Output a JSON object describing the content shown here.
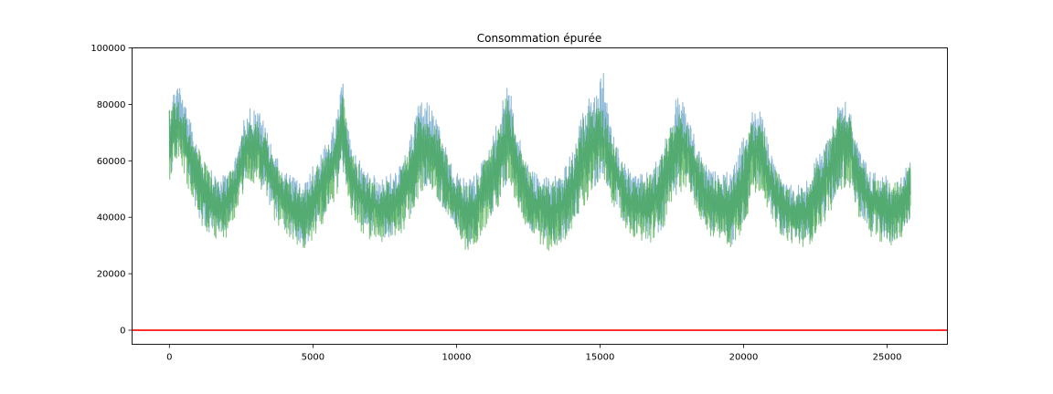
{
  "chart_data": {
    "type": "line",
    "title": "Consommation épurée",
    "xlabel": "",
    "ylabel": "",
    "xlim": [
      -1300,
      27100
    ],
    "ylim": [
      -5000,
      100000
    ],
    "x_ticks": [
      0,
      5000,
      10000,
      15000,
      20000,
      25000
    ],
    "x_tick_labels": [
      "0",
      "5000",
      "10000",
      "15000",
      "20000",
      "25000"
    ],
    "y_ticks": [
      0,
      20000,
      40000,
      60000,
      80000,
      100000
    ],
    "y_tick_labels": [
      "0",
      "20000",
      "40000",
      "60000",
      "80000",
      "100000"
    ],
    "grid": false,
    "legend": "none",
    "series": [
      {
        "color": "#1f77b4",
        "opacity": 0.5,
        "x": [
          0,
          300,
          700,
          1100,
          1500,
          1900,
          2300,
          2700,
          3100,
          3500,
          3900,
          4300,
          4700,
          5100,
          5500,
          5800,
          6050,
          6300,
          6700,
          7100,
          7500,
          7900,
          8300,
          8700,
          9100,
          9500,
          9900,
          10300,
          10700,
          11100,
          11500,
          11800,
          12100,
          12500,
          12900,
          13300,
          13700,
          14100,
          14500,
          14900,
          15100,
          15400,
          15800,
          16200,
          16600,
          17000,
          17400,
          17700,
          18000,
          18400,
          18800,
          19200,
          19600,
          20000,
          20300,
          20600,
          21000,
          21400,
          21800,
          22200,
          22600,
          23000,
          23400,
          23700,
          24000,
          24400,
          24800,
          25200,
          25500,
          25800
        ],
        "upper": [
          83000,
          91000,
          76000,
          66000,
          57000,
          56000,
          62000,
          81000,
          80000,
          70000,
          58000,
          56000,
          53000,
          62000,
          68000,
          76000,
          91000,
          68000,
          60000,
          56000,
          56000,
          58000,
          65000,
          85000,
          82000,
          70000,
          58000,
          55000,
          57000,
          66000,
          78000,
          93000,
          72000,
          60000,
          56000,
          56000,
          58000,
          66000,
          84000,
          85000,
          95000,
          72000,
          62000,
          56000,
          57000,
          62000,
          74000,
          86000,
          80000,
          66000,
          58000,
          57000,
          58000,
          70000,
          80000,
          79000,
          62000,
          55000,
          52000,
          55000,
          64000,
          72000,
          86000,
          82000,
          66000,
          58000,
          56000,
          56000,
          55000,
          62000
        ],
        "lower": [
          49000,
          62000,
          48000,
          36000,
          32000,
          33000,
          42000,
          52000,
          52000,
          42000,
          35000,
          32000,
          28000,
          33000,
          40000,
          48000,
          53000,
          42000,
          34000,
          32000,
          30000,
          32000,
          37000,
          48000,
          50000,
          42000,
          35000,
          27000,
          32000,
          37000,
          44000,
          52000,
          44000,
          35000,
          31000,
          26000,
          31000,
          36000,
          44000,
          50000,
          53000,
          45000,
          36000,
          33000,
          29000,
          32000,
          38000,
          48000,
          51000,
          41000,
          33000,
          31000,
          28000,
          36000,
          46000,
          50000,
          38000,
          32000,
          30000,
          29000,
          34000,
          42000,
          50000,
          50000,
          40000,
          33000,
          32000,
          29000,
          33000,
          38000
        ]
      },
      {
        "color": "#2ca02c",
        "opacity": 0.6,
        "x": [
          0,
          300,
          700,
          1100,
          1500,
          1900,
          2300,
          2700,
          3100,
          3500,
          3900,
          4300,
          4700,
          5100,
          5500,
          5800,
          6050,
          6300,
          6700,
          7100,
          7500,
          7900,
          8300,
          8700,
          9100,
          9500,
          9900,
          10300,
          10700,
          11100,
          11500,
          11800,
          12100,
          12500,
          12900,
          13300,
          13700,
          14100,
          14500,
          14900,
          15100,
          15400,
          15800,
          16200,
          16600,
          17000,
          17400,
          17700,
          18000,
          18400,
          18800,
          19200,
          19600,
          20000,
          20300,
          20600,
          21000,
          21400,
          21800,
          22200,
          22600,
          23000,
          23400,
          23700,
          24000,
          24400,
          24800,
          25200,
          25500,
          25800
        ],
        "upper": [
          80000,
          84000,
          74000,
          64000,
          55000,
          54000,
          60000,
          78000,
          76000,
          68000,
          56000,
          54000,
          51000,
          60000,
          66000,
          74000,
          86000,
          66000,
          58000,
          54000,
          54000,
          56000,
          63000,
          80000,
          78000,
          68000,
          56000,
          53000,
          55000,
          64000,
          75000,
          88000,
          70000,
          58000,
          54000,
          54000,
          56000,
          64000,
          80000,
          82000,
          80000,
          70000,
          60000,
          54000,
          55000,
          60000,
          72000,
          82000,
          77000,
          64000,
          56000,
          55000,
          56000,
          67000,
          76000,
          75000,
          60000,
          53000,
          50000,
          53000,
          62000,
          70000,
          80000,
          78000,
          64000,
          56000,
          54000,
          54000,
          53000,
          61000
        ],
        "lower": [
          52000,
          60000,
          47000,
          35000,
          31000,
          29000,
          40000,
          50000,
          50000,
          40000,
          33000,
          30000,
          27000,
          32000,
          38000,
          46000,
          52000,
          40000,
          33000,
          30000,
          29000,
          31000,
          36000,
          46000,
          48000,
          40000,
          33000,
          26000,
          30000,
          36000,
          42000,
          50000,
          42000,
          33000,
          29000,
          25000,
          30000,
          35000,
          42000,
          48000,
          52000,
          44000,
          35000,
          31000,
          28000,
          31000,
          37000,
          46000,
          49000,
          40000,
          32000,
          30000,
          27000,
          35000,
          44000,
          48000,
          37000,
          31000,
          29000,
          28000,
          33000,
          40000,
          48000,
          48000,
          39000,
          32000,
          30000,
          28000,
          32000,
          37000
        ]
      }
    ],
    "reference_line": {
      "y": 0,
      "color": "#ff0000"
    }
  }
}
